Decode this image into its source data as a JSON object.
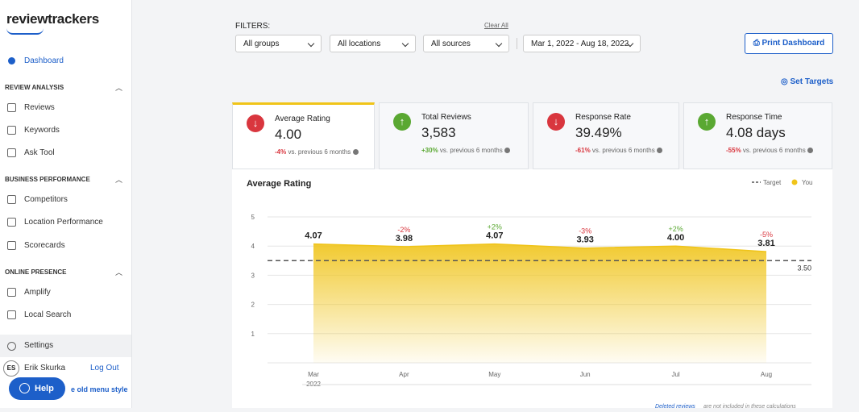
{
  "sidebar": {
    "logo": "reviewtrackers",
    "dashboard": "Dashboard",
    "sections": [
      {
        "title": "REVIEW ANALYSIS",
        "items": [
          "Reviews",
          "Keywords",
          "Ask Tool"
        ]
      },
      {
        "title": "BUSINESS PERFORMANCE",
        "items": [
          "Competitors",
          "Location Performance",
          "Scorecards"
        ]
      },
      {
        "title": "ONLINE PRESENCE",
        "items": [
          "Amplify",
          "Local Search"
        ]
      }
    ],
    "settings": "Settings",
    "user_initials": "ES",
    "user_name": "Erik Skurka",
    "logout": "Log Out",
    "help": "Help",
    "old_menu": "e old menu style"
  },
  "filters": {
    "label": "FILTERS:",
    "clear": "Clear All",
    "groups": "All groups",
    "locations": "All locations",
    "sources": "All sources",
    "dates": "Mar 1, 2022 - Aug 18, 2022",
    "print": "Print Dashboard",
    "targets": "Set Targets"
  },
  "kpis": [
    {
      "title": "Average Rating",
      "value": "4.00",
      "change": "-4%",
      "note": "vs. previous 6 months",
      "trend": "down"
    },
    {
      "title": "Total Reviews",
      "value": "3,583",
      "change": "+30%",
      "note": "vs. previous 6 months",
      "trend": "up"
    },
    {
      "title": "Response Rate",
      "value": "39.49%",
      "change": "-61%",
      "note": "vs. previous 6 months",
      "trend": "down"
    },
    {
      "title": "Response Time",
      "value": "4.08 days",
      "change": "-55%",
      "note": "vs. previous 6 months",
      "trend": "up"
    }
  ],
  "chart_data": {
    "type": "area",
    "title": "Average Rating",
    "categories": [
      "Mar",
      "Apr",
      "May",
      "Jun",
      "Jul",
      "Aug"
    ],
    "year": "2022",
    "series": [
      {
        "name": "You",
        "color": "#f0c419",
        "values": [
          4.07,
          3.98,
          4.07,
          3.93,
          4.0,
          3.81
        ],
        "value_labels": [
          "4.07",
          "3.98",
          "4.07",
          "3.93",
          "4.00",
          "3.81"
        ],
        "change_labels": [
          null,
          "-2%",
          "+2%",
          "-3%",
          "+2%",
          "-5%"
        ]
      }
    ],
    "target": {
      "name": "Target",
      "value": 3.5,
      "label": "3.50",
      "color": "#555555"
    },
    "ylim": [
      0,
      5
    ],
    "yticks": [
      1,
      2,
      3,
      4,
      5
    ],
    "grid": true,
    "footnote": {
      "link": "Deleted reviews",
      "text": "are not included in these calculations"
    }
  }
}
